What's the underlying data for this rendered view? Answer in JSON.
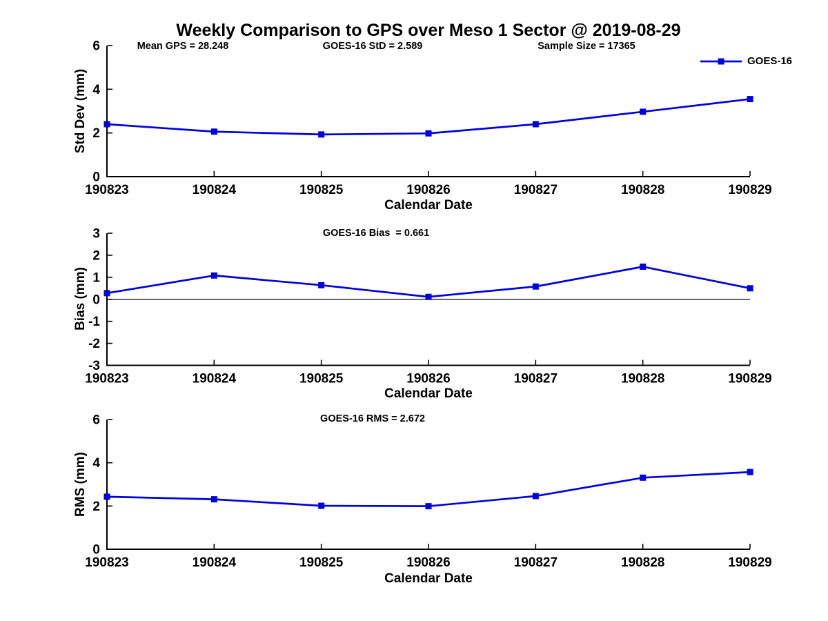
{
  "title": "Weekly Comparison to GPS over Meso 1 Sector @ 2019-08-29",
  "accent_color": "#0000DC",
  "axis_color": "#000000",
  "legend": {
    "label": "GOES-16",
    "position": "upper-right-inside",
    "marker": "square"
  },
  "chart_data": [
    {
      "type": "line",
      "name": "std-dev",
      "xlabel": "Calendar Date",
      "ylabel": "Std Dev (mm)",
      "categories": [
        "190823",
        "190824",
        "190825",
        "190826",
        "190827",
        "190828",
        "190829"
      ],
      "series": [
        {
          "name": "GOES-16",
          "values": [
            2.4,
            2.06,
            1.93,
            1.98,
            2.4,
            2.97,
            3.55
          ]
        }
      ],
      "ylim": [
        0,
        6
      ],
      "yticks": [
        0,
        2,
        4,
        6
      ],
      "grid": false,
      "zero_line": false,
      "annotations": [
        {
          "text": "Mean GPS = 28.248"
        },
        {
          "text": "GOES-16 StD = 2.589"
        },
        {
          "text": "Sample Size = 17365"
        }
      ]
    },
    {
      "type": "line",
      "name": "bias",
      "xlabel": "Calendar Date",
      "ylabel": "Bias (mm)",
      "categories": [
        "190823",
        "190824",
        "190825",
        "190826",
        "190827",
        "190828",
        "190829"
      ],
      "series": [
        {
          "name": "GOES-16",
          "values": [
            0.28,
            1.08,
            0.64,
            0.11,
            0.58,
            1.48,
            0.5
          ]
        }
      ],
      "ylim": [
        -3,
        3
      ],
      "yticks": [
        -3,
        -2,
        -1,
        0,
        1,
        2,
        3
      ],
      "grid": false,
      "zero_line": true,
      "annotations": [
        {
          "text": "GOES-16 Bias  = 0.661"
        }
      ]
    },
    {
      "type": "line",
      "name": "rms",
      "xlabel": "Calendar Date",
      "ylabel": "RMS (mm)",
      "categories": [
        "190823",
        "190824",
        "190825",
        "190826",
        "190827",
        "190828",
        "190829"
      ],
      "series": [
        {
          "name": "GOES-16",
          "values": [
            2.43,
            2.31,
            2.01,
            1.99,
            2.46,
            3.31,
            3.57
          ]
        }
      ],
      "ylim": [
        0,
        6
      ],
      "yticks": [
        0,
        2,
        4,
        6
      ],
      "grid": false,
      "zero_line": false,
      "annotations": [
        {
          "text": "GOES-16 RMS = 2.672"
        }
      ]
    }
  ]
}
